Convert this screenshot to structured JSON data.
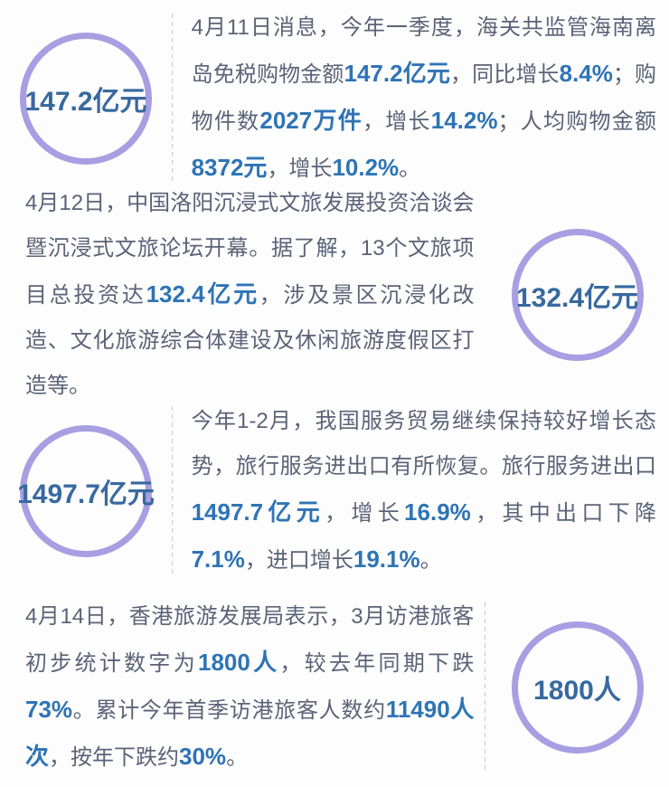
{
  "colors": {
    "page_bg": "#fdfdfd",
    "circle_border": "#a89ee2",
    "badge_text": "#38699f",
    "highlight": "#2e74b5",
    "body_text": "#5b6377",
    "divider": "#c9c9c9"
  },
  "sections": [
    {
      "badge": {
        "label": "147.2亿元",
        "side": "left"
      },
      "paragraph": [
        {
          "text": "4月11日消息，今年一季度，海关共监管海南离岛免税购物金额",
          "highlight": false
        },
        {
          "text": "147.2亿元",
          "highlight": true
        },
        {
          "text": "，同比增长",
          "highlight": false
        },
        {
          "text": "8.4%",
          "highlight": true
        },
        {
          "text": "；购物件数",
          "highlight": false
        },
        {
          "text": "2027万件",
          "highlight": true
        },
        {
          "text": "，增长",
          "highlight": false
        },
        {
          "text": "14.2%",
          "highlight": true
        },
        {
          "text": "；人均购物金额",
          "highlight": false
        },
        {
          "text": "8372元",
          "highlight": true
        },
        {
          "text": "，增长",
          "highlight": false
        },
        {
          "text": "10.2%",
          "highlight": true
        },
        {
          "text": "。",
          "highlight": false
        }
      ]
    },
    {
      "badge": {
        "label": "132.4亿元",
        "side": "right"
      },
      "paragraph": [
        {
          "text": "4月12日，中国洛阳沉浸式文旅发展投资洽谈会暨沉浸式文旅论坛开幕。据了解，13个文旅项目总投资达",
          "highlight": false
        },
        {
          "text": "132.4亿元",
          "highlight": true
        },
        {
          "text": "，涉及景区沉浸化改造、文化旅游综合体建设及休闲旅游度假区打造等。",
          "highlight": false
        }
      ]
    },
    {
      "badge": {
        "label": "1497.7亿元",
        "side": "left"
      },
      "paragraph": [
        {
          "text": "今年1-2月，我国服务贸易继续保持较好增长态势，旅行服务进出口有所恢复。旅行服务进出口",
          "highlight": false
        },
        {
          "text": "1497.7亿元",
          "highlight": true
        },
        {
          "text": "，增长",
          "highlight": false
        },
        {
          "text": "16.9%",
          "highlight": true
        },
        {
          "text": "，其中出口下降",
          "highlight": false
        },
        {
          "text": "7.1%",
          "highlight": true
        },
        {
          "text": "，进口增长",
          "highlight": false
        },
        {
          "text": "19.1%",
          "highlight": true
        },
        {
          "text": "。",
          "highlight": false
        }
      ]
    },
    {
      "badge": {
        "label": "1800人",
        "side": "right"
      },
      "paragraph": [
        {
          "text": "4月14日，香港旅游发展局表示，3月访港旅客初步统计数字为",
          "highlight": false
        },
        {
          "text": "1800人",
          "highlight": true
        },
        {
          "text": "，较去年同期下跌",
          "highlight": false
        },
        {
          "text": "73%",
          "highlight": true
        },
        {
          "text": "。累计今年首季访港旅客人数约",
          "highlight": false
        },
        {
          "text": "11490人次",
          "highlight": true
        },
        {
          "text": "，按年下跌约",
          "highlight": false
        },
        {
          "text": "30%",
          "highlight": true
        },
        {
          "text": "。",
          "highlight": false
        }
      ]
    }
  ]
}
